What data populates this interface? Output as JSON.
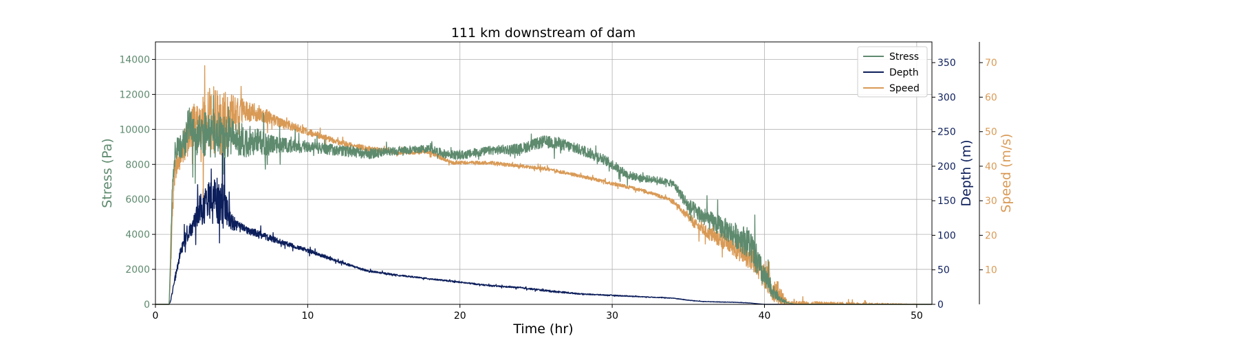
{
  "chart_data": {
    "type": "line",
    "title": "111 km downstream of dam",
    "xlabel": "Time (hr)",
    "xlim": [
      0,
      51
    ],
    "xticks": [
      0,
      10,
      20,
      30,
      40,
      50
    ],
    "grid": true,
    "legend_position": "top-right",
    "axes": [
      {
        "id": "stress",
        "label": "Stress (Pa)",
        "side": "left",
        "color": "#5e8a6e",
        "ylim": [
          0,
          15000
        ],
        "ticks": [
          0,
          2000,
          4000,
          6000,
          8000,
          10000,
          12000,
          14000
        ]
      },
      {
        "id": "depth",
        "label": "Depth (m)",
        "side": "right",
        "color": "#0c1e5b",
        "ylim": [
          0,
          380
        ],
        "ticks": [
          0,
          50,
          100,
          150,
          200,
          250,
          300,
          350
        ]
      },
      {
        "id": "speed",
        "label": "Speed (m/s)",
        "side": "right-outer",
        "color": "#d99a56",
        "ylim": [
          0,
          76
        ],
        "ticks": [
          10,
          20,
          30,
          40,
          50,
          60,
          70
        ]
      }
    ],
    "series": [
      {
        "name": "Stress",
        "axis": "stress",
        "color": "#5e8a6e",
        "x": [
          0,
          0.9,
          1.0,
          1.1,
          1.3,
          1.6,
          2.0,
          2.2,
          2.5,
          3.0,
          3.5,
          4.0,
          5.0,
          6.0,
          7.0,
          8.0,
          10.0,
          12.0,
          14.0,
          16.0,
          18.0,
          19.0,
          20.0,
          22.0,
          24.0,
          25.5,
          26.5,
          28.0,
          29.0,
          30.0,
          31.0,
          32.0,
          33.0,
          34.0,
          34.5,
          35.0,
          36.0,
          37.0,
          38.0,
          39.0,
          39.5,
          40.0,
          40.5,
          41.0,
          41.5,
          42.0,
          45.0,
          51.0
        ],
        "y": [
          0,
          0,
          3000,
          6500,
          8800,
          9000,
          9400,
          10500,
          9500,
          9800,
          9600,
          9700,
          9500,
          9300,
          9200,
          9100,
          9000,
          8800,
          8600,
          8800,
          8900,
          8600,
          8500,
          8800,
          8900,
          9300,
          9200,
          8800,
          8500,
          8000,
          7400,
          7200,
          7100,
          6900,
          6300,
          5600,
          5000,
          4500,
          4000,
          3500,
          2500,
          1500,
          800,
          300,
          100,
          0,
          0,
          0
        ],
        "noise": [
          0,
          0,
          200,
          300,
          600,
          700,
          900,
          1100,
          1100,
          1200,
          1300,
          1300,
          1200,
          900,
          800,
          450,
          350,
          300,
          300,
          250,
          200,
          250,
          250,
          250,
          300,
          350,
          350,
          300,
          300,
          280,
          250,
          200,
          200,
          200,
          300,
          450,
          500,
          600,
          700,
          900,
          900,
          700,
          400,
          200,
          0,
          0,
          0,
          0
        ]
      },
      {
        "name": "Depth",
        "axis": "depth",
        "color": "#0c1e5b",
        "x": [
          0,
          0.9,
          1.0,
          1.3,
          1.8,
          2.5,
          3.0,
          3.5,
          4.0,
          4.5,
          5.0,
          5.5,
          6.0,
          7.0,
          8.0,
          9.0,
          10.0,
          12.0,
          14.0,
          16.0,
          18.0,
          20.0,
          22.0,
          24.0,
          26.0,
          28.0,
          30.0,
          32.0,
          34.0,
          35.0,
          36.0,
          38.0,
          39.0,
          39.5,
          40.0,
          41.0,
          51.0
        ],
        "y": [
          0,
          0,
          5,
          40,
          90,
          115,
          140,
          150,
          150,
          145,
          120,
          112,
          108,
          100,
          92,
          85,
          78,
          62,
          48,
          42,
          37,
          32,
          27,
          24,
          19,
          15,
          13,
          11,
          9,
          6,
          4,
          3,
          2,
          1,
          0,
          0,
          0
        ],
        "noise": [
          0,
          0,
          1,
          5,
          9,
          12,
          25,
          32,
          35,
          30,
          12,
          7,
          6,
          5,
          4,
          3,
          3,
          2,
          1.5,
          1,
          1,
          1,
          1,
          1,
          1.5,
          0.8,
          0.8,
          0.5,
          0.5,
          0.4,
          0.3,
          0.3,
          0.2,
          0,
          0,
          0,
          0
        ]
      },
      {
        "name": "Speed",
        "axis": "speed",
        "color": "#d99a56",
        "x": [
          0,
          0.9,
          1.0,
          1.1,
          1.3,
          1.6,
          2.0,
          2.5,
          3.0,
          3.5,
          4.0,
          4.5,
          5.0,
          6.0,
          7.0,
          8.0,
          10.0,
          12.0,
          14.0,
          16.0,
          18.0,
          19.0,
          19.5,
          22.0,
          24.0,
          26.0,
          28.0,
          30.0,
          32.0,
          34.0,
          34.8,
          35.5,
          36.5,
          37.5,
          38.5,
          39.5,
          40.0,
          40.5,
          41.0,
          41.5,
          51.0
        ],
        "y": [
          0,
          0,
          10,
          25,
          40,
          43,
          47,
          52,
          51,
          54,
          53,
          52,
          55,
          56,
          55,
          53,
          50,
          47,
          45,
          44,
          44,
          42,
          41,
          41,
          40,
          39,
          37,
          35,
          33,
          30,
          26,
          23,
          20,
          18,
          15,
          12,
          8,
          5,
          3,
          0,
          0
        ],
        "noise": [
          0,
          0,
          1,
          2,
          3,
          4,
          5,
          6,
          8,
          9,
          10,
          10,
          6,
          3,
          2.5,
          1.5,
          1.0,
          0.8,
          0.8,
          0.6,
          0.6,
          0.6,
          0.5,
          0.5,
          0.5,
          0.5,
          0.5,
          0.5,
          0.5,
          0.5,
          1.0,
          1.5,
          2.0,
          2.5,
          3.0,
          3.5,
          4.0,
          4.0,
          3.0,
          1.0,
          0
        ]
      }
    ]
  }
}
